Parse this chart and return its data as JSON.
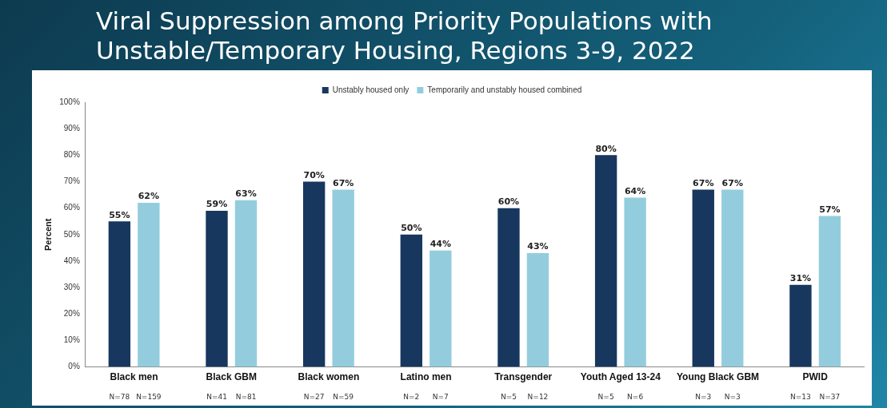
{
  "chart_data": {
    "type": "bar",
    "title": "Viral Suppression among Priority Populations with Unstable/Temporary Housing, Regions 3-9, 2022",
    "ylabel": "Percent",
    "categories": [
      "Black men",
      "Black GBM",
      "Black women",
      "Latino men",
      "Transgender",
      "Youth Aged 13-24",
      "Young Black GBM",
      "PWID"
    ],
    "series": [
      {
        "name": "Unstably housed only",
        "color": "#17375e",
        "values": [
          55,
          59,
          70,
          50,
          60,
          80,
          67,
          31
        ],
        "value_labels": [
          "55%",
          "59%",
          "70%",
          "50%",
          "60%",
          "80%",
          "67%",
          "31%"
        ]
      },
      {
        "name": "Temporarily and unstably housed combined",
        "color": "#93cddd",
        "values": [
          62,
          63,
          67,
          44,
          43,
          64,
          67,
          57
        ],
        "value_labels": [
          "62%",
          "63%",
          "67%",
          "44%",
          "43%",
          "64%",
          "67%",
          "57%"
        ]
      }
    ],
    "ylim": [
      0,
      100
    ],
    "yticks": [
      {
        "value": 0,
        "label": "0%"
      },
      {
        "value": 10,
        "label": "10%"
      },
      {
        "value": 20,
        "label": "20%"
      },
      {
        "value": 30,
        "label": "30%"
      },
      {
        "value": 40,
        "label": "40%"
      },
      {
        "value": 50,
        "label": "50%"
      },
      {
        "value": 60,
        "label": "60%"
      },
      {
        "value": 70,
        "label": "70%"
      },
      {
        "value": 80,
        "label": "80%"
      },
      {
        "value": 90,
        "label": "90%"
      },
      {
        "value": 100,
        "label": "100%"
      }
    ],
    "grid": false,
    "legend": "top",
    "annotations": [
      "N=78",
      "N=159",
      "N=41",
      "N=81",
      "N=27",
      "N=59",
      "N=2",
      "N=7",
      "N=5",
      "N=12",
      "N=5",
      "N=6",
      "N=3",
      "N=3",
      "N=13",
      "N=37"
    ]
  }
}
